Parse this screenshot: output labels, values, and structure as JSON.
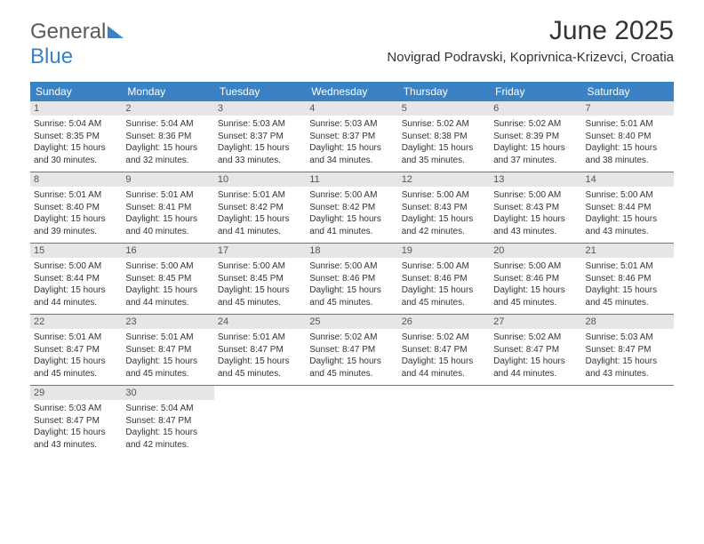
{
  "logo": {
    "part1": "General",
    "part2": "Blue"
  },
  "title": "June 2025",
  "location": "Novigrad Podravski, Koprivnica-Krizevci, Croatia",
  "colors": {
    "header_bg": "#3b82c4",
    "header_text": "#ffffff",
    "daynum_bg": "#e6e6e6",
    "daynum_text": "#555555",
    "text": "#333333",
    "row_border": "#3b82c4",
    "page_bg": "#ffffff"
  },
  "weekdays": [
    "Sunday",
    "Monday",
    "Tuesday",
    "Wednesday",
    "Thursday",
    "Friday",
    "Saturday"
  ],
  "weeks": [
    [
      {
        "n": "1",
        "sr": "5:04 AM",
        "ss": "8:35 PM",
        "dl": "15 hours and 30 minutes."
      },
      {
        "n": "2",
        "sr": "5:04 AM",
        "ss": "8:36 PM",
        "dl": "15 hours and 32 minutes."
      },
      {
        "n": "3",
        "sr": "5:03 AM",
        "ss": "8:37 PM",
        "dl": "15 hours and 33 minutes."
      },
      {
        "n": "4",
        "sr": "5:03 AM",
        "ss": "8:37 PM",
        "dl": "15 hours and 34 minutes."
      },
      {
        "n": "5",
        "sr": "5:02 AM",
        "ss": "8:38 PM",
        "dl": "15 hours and 35 minutes."
      },
      {
        "n": "6",
        "sr": "5:02 AM",
        "ss": "8:39 PM",
        "dl": "15 hours and 37 minutes."
      },
      {
        "n": "7",
        "sr": "5:01 AM",
        "ss": "8:40 PM",
        "dl": "15 hours and 38 minutes."
      }
    ],
    [
      {
        "n": "8",
        "sr": "5:01 AM",
        "ss": "8:40 PM",
        "dl": "15 hours and 39 minutes."
      },
      {
        "n": "9",
        "sr": "5:01 AM",
        "ss": "8:41 PM",
        "dl": "15 hours and 40 minutes."
      },
      {
        "n": "10",
        "sr": "5:01 AM",
        "ss": "8:42 PM",
        "dl": "15 hours and 41 minutes."
      },
      {
        "n": "11",
        "sr": "5:00 AM",
        "ss": "8:42 PM",
        "dl": "15 hours and 41 minutes."
      },
      {
        "n": "12",
        "sr": "5:00 AM",
        "ss": "8:43 PM",
        "dl": "15 hours and 42 minutes."
      },
      {
        "n": "13",
        "sr": "5:00 AM",
        "ss": "8:43 PM",
        "dl": "15 hours and 43 minutes."
      },
      {
        "n": "14",
        "sr": "5:00 AM",
        "ss": "8:44 PM",
        "dl": "15 hours and 43 minutes."
      }
    ],
    [
      {
        "n": "15",
        "sr": "5:00 AM",
        "ss": "8:44 PM",
        "dl": "15 hours and 44 minutes."
      },
      {
        "n": "16",
        "sr": "5:00 AM",
        "ss": "8:45 PM",
        "dl": "15 hours and 44 minutes."
      },
      {
        "n": "17",
        "sr": "5:00 AM",
        "ss": "8:45 PM",
        "dl": "15 hours and 45 minutes."
      },
      {
        "n": "18",
        "sr": "5:00 AM",
        "ss": "8:46 PM",
        "dl": "15 hours and 45 minutes."
      },
      {
        "n": "19",
        "sr": "5:00 AM",
        "ss": "8:46 PM",
        "dl": "15 hours and 45 minutes."
      },
      {
        "n": "20",
        "sr": "5:00 AM",
        "ss": "8:46 PM",
        "dl": "15 hours and 45 minutes."
      },
      {
        "n": "21",
        "sr": "5:01 AM",
        "ss": "8:46 PM",
        "dl": "15 hours and 45 minutes."
      }
    ],
    [
      {
        "n": "22",
        "sr": "5:01 AM",
        "ss": "8:47 PM",
        "dl": "15 hours and 45 minutes."
      },
      {
        "n": "23",
        "sr": "5:01 AM",
        "ss": "8:47 PM",
        "dl": "15 hours and 45 minutes."
      },
      {
        "n": "24",
        "sr": "5:01 AM",
        "ss": "8:47 PM",
        "dl": "15 hours and 45 minutes."
      },
      {
        "n": "25",
        "sr": "5:02 AM",
        "ss": "8:47 PM",
        "dl": "15 hours and 45 minutes."
      },
      {
        "n": "26",
        "sr": "5:02 AM",
        "ss": "8:47 PM",
        "dl": "15 hours and 44 minutes."
      },
      {
        "n": "27",
        "sr": "5:02 AM",
        "ss": "8:47 PM",
        "dl": "15 hours and 44 minutes."
      },
      {
        "n": "28",
        "sr": "5:03 AM",
        "ss": "8:47 PM",
        "dl": "15 hours and 43 minutes."
      }
    ],
    [
      {
        "n": "29",
        "sr": "5:03 AM",
        "ss": "8:47 PM",
        "dl": "15 hours and 43 minutes."
      },
      {
        "n": "30",
        "sr": "5:04 AM",
        "ss": "8:47 PM",
        "dl": "15 hours and 42 minutes."
      },
      null,
      null,
      null,
      null,
      null
    ]
  ],
  "labels": {
    "sunrise": "Sunrise: ",
    "sunset": "Sunset: ",
    "daylight": "Daylight: "
  }
}
